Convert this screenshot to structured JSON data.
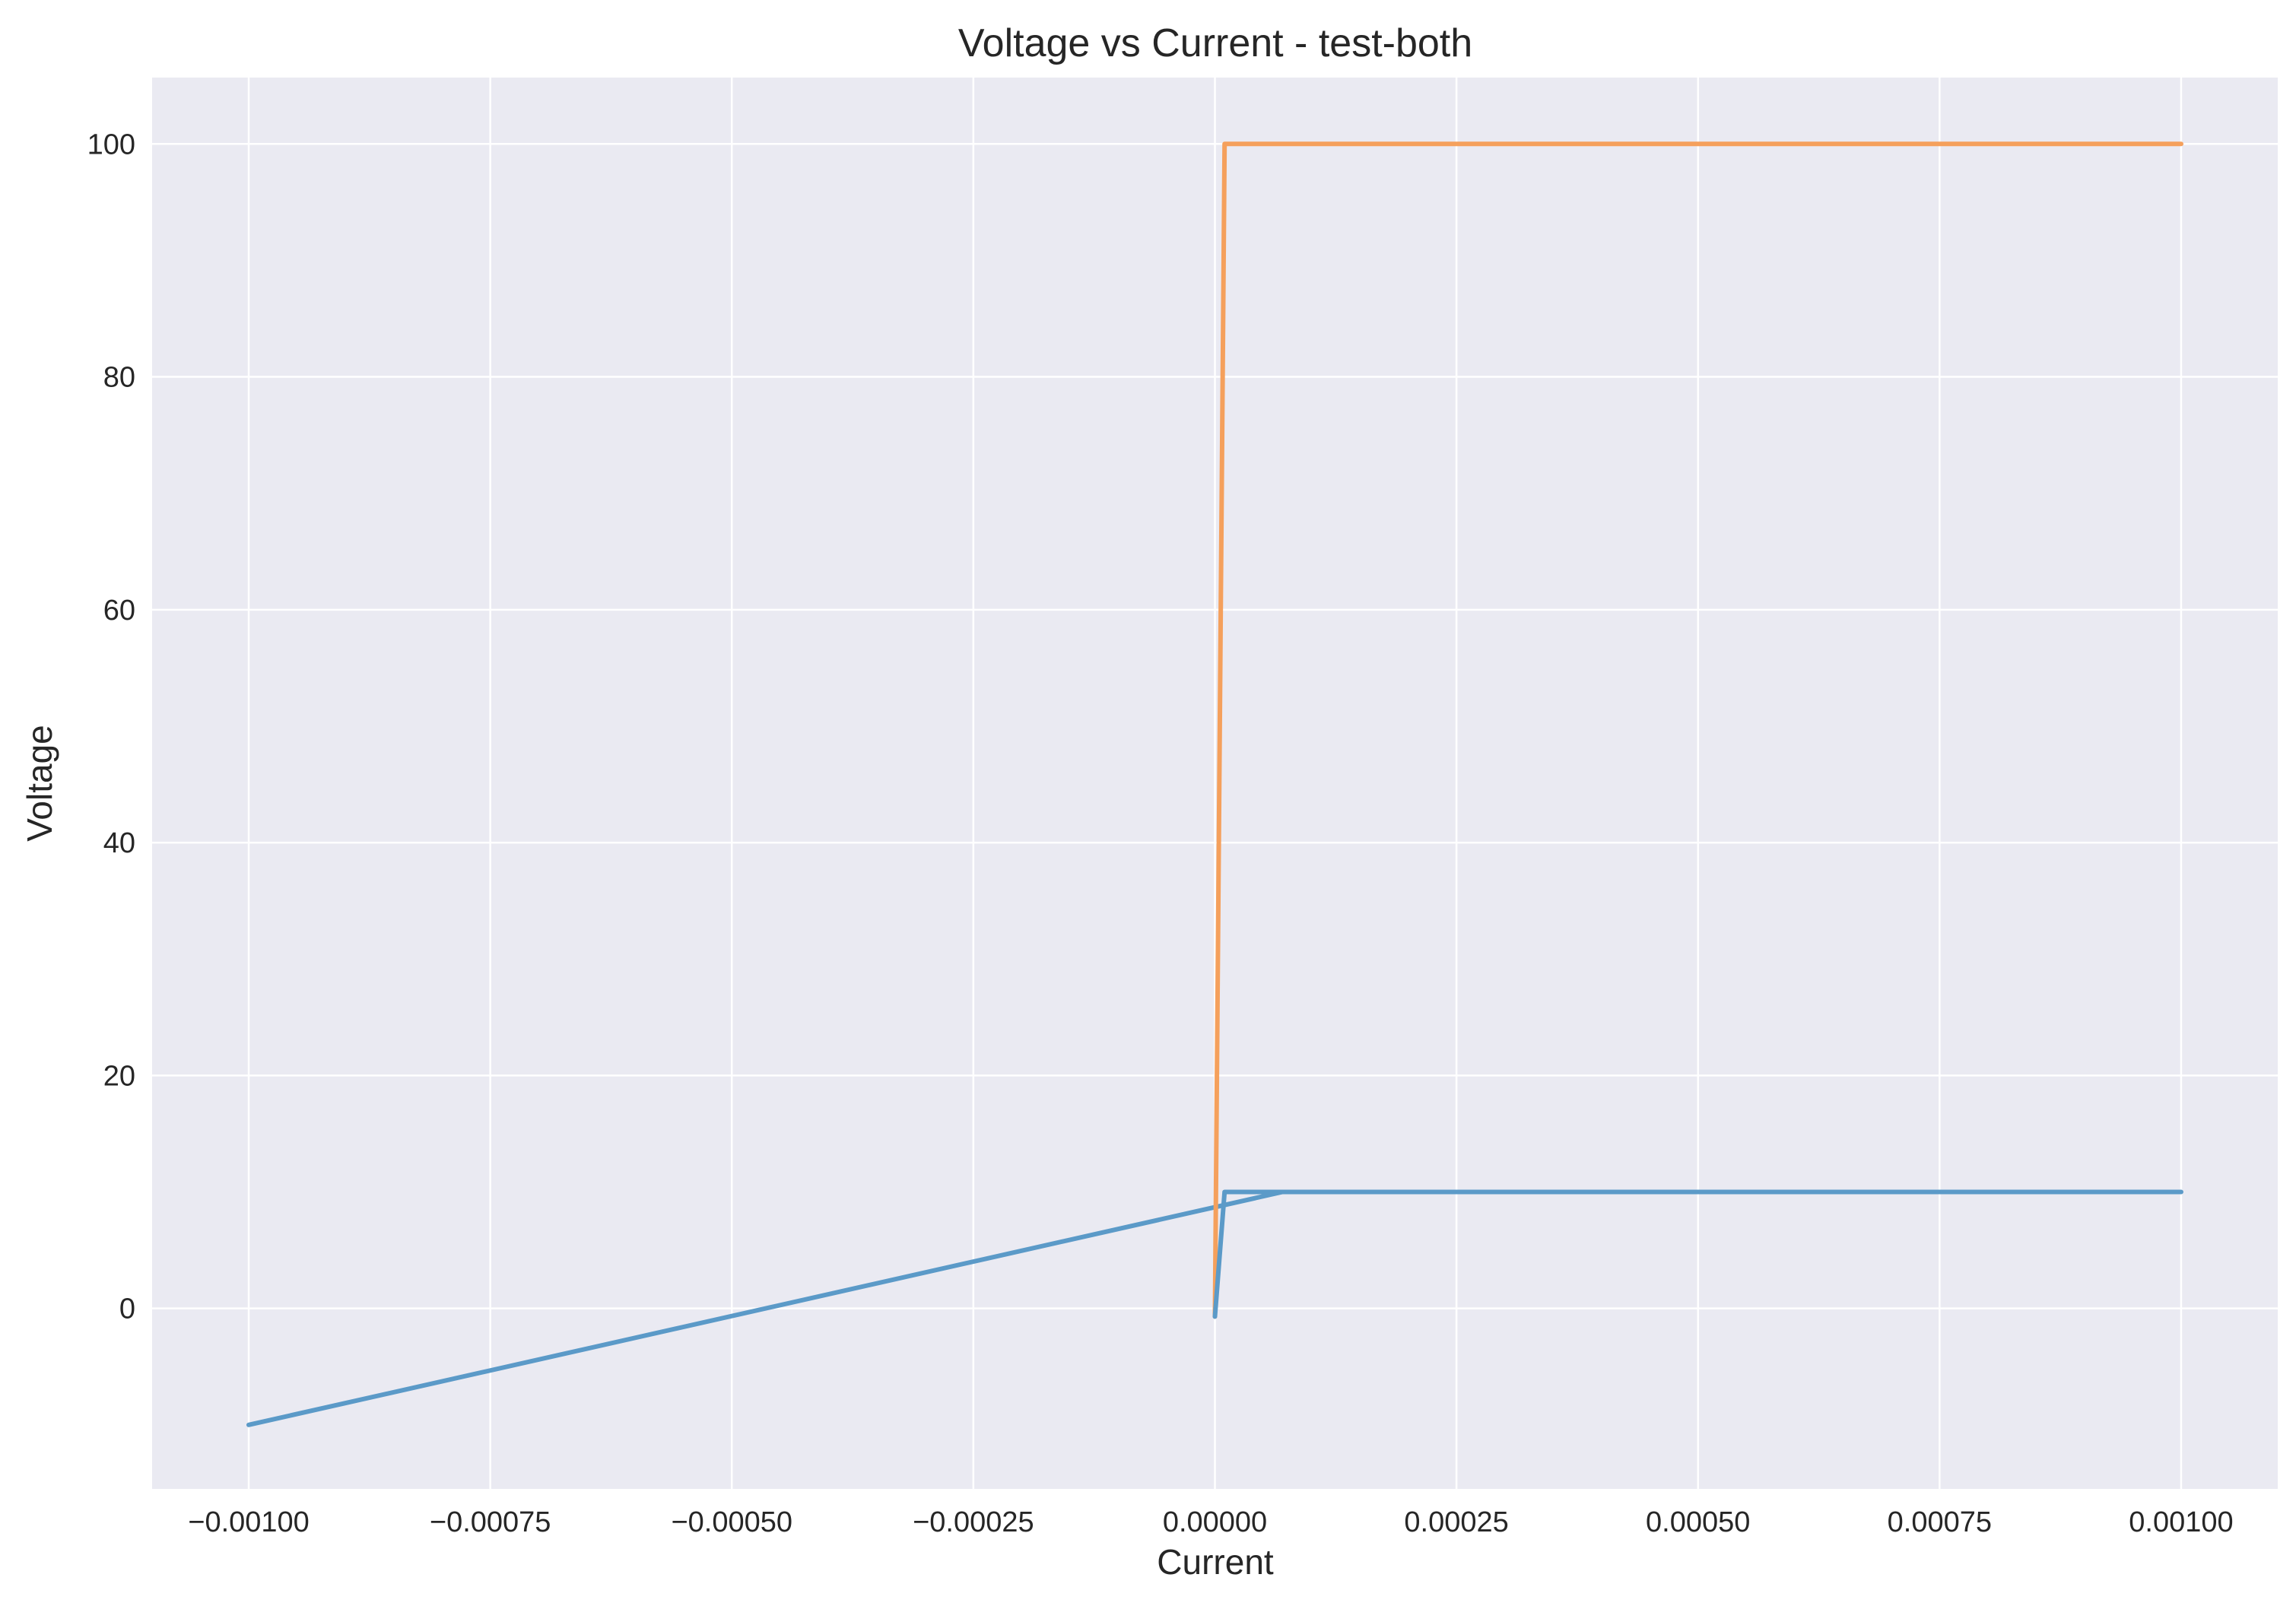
{
  "chart_data": {
    "type": "line",
    "title": "Voltage vs Current - test-both",
    "xlabel": "Current",
    "ylabel": "Voltage",
    "xlim": [
      -0.0011,
      0.0011
    ],
    "ylim": [
      -15.5,
      105.7
    ],
    "grid": true,
    "legend": "none",
    "background": "#eaeaf2",
    "x_ticks": [
      -0.001,
      -0.00075,
      -0.0005,
      -0.00025,
      0,
      0.00025,
      0.0005,
      0.00075,
      0.001
    ],
    "x_tick_labels": [
      "−0.00100",
      "−0.00075",
      "−0.00050",
      "−0.00025",
      "0.00000",
      "0.00025",
      "0.00050",
      "0.00075",
      "0.00100"
    ],
    "y_ticks": [
      0,
      20,
      40,
      60,
      80,
      100
    ],
    "y_tick_labels": [
      "0",
      "20",
      "40",
      "60",
      "80",
      "100"
    ],
    "series": [
      {
        "color": "#5b9ac8",
        "x": [
          -0.001,
          7e-05,
          0.001
        ],
        "y": [
          -10,
          10,
          10
        ]
      },
      {
        "color": "#f5a05c",
        "x": [
          0.0,
          1e-05,
          0.001
        ],
        "y": [
          -0.7,
          100,
          100
        ]
      },
      {
        "color": "#5b9ac8",
        "x": [
          0.0,
          1e-05,
          7e-05
        ],
        "y": [
          -0.7,
          10,
          10
        ]
      }
    ]
  }
}
